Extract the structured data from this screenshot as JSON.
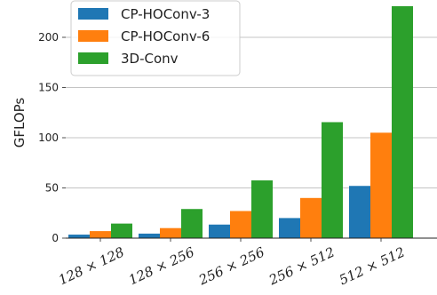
{
  "chart_data": {
    "type": "bar",
    "title": "",
    "xlabel": "",
    "ylabel": "GFLOPs",
    "ylim": [
      0,
      240
    ],
    "yticks": [
      0,
      50,
      100,
      150,
      200
    ],
    "grid": "horizontal",
    "legend_position": "top-left",
    "categories": [
      "128 × 128",
      "128 × 256",
      "256 × 256",
      "256 × 512",
      "512 × 512"
    ],
    "series": [
      {
        "name": "CP-HOConv-3",
        "color": "#1f77b4",
        "values": [
          3.5,
          4.5,
          13.5,
          20,
          52
        ]
      },
      {
        "name": "CP-HOConv-6",
        "color": "#ff7f0e",
        "values": [
          7,
          10,
          27,
          40,
          105
        ]
      },
      {
        "name": "3D-Conv",
        "color": "#2ca02c",
        "values": [
          14.5,
          29,
          57.5,
          115.5,
          231
        ]
      }
    ]
  }
}
